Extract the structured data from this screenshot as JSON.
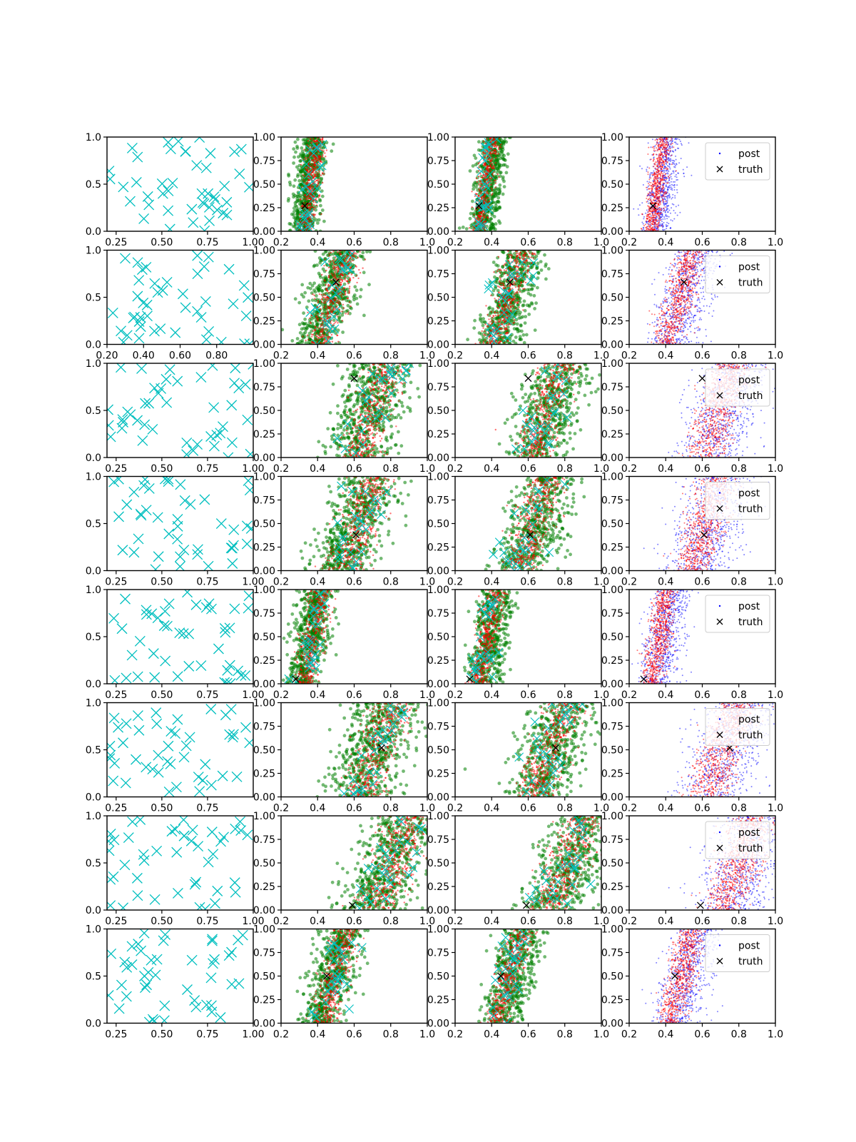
{
  "figure": {
    "rows": 8,
    "cols": 4,
    "colors": {
      "samples_cyan": "#00bfbf",
      "posterior_red": "#ff0000",
      "posterior_green": "#008000",
      "posterior_blue": "#0000ff",
      "truth_black": "#000000"
    },
    "legend": {
      "post": "post",
      "truth": "truth"
    },
    "yticks": [
      0.0,
      0.25,
      0.5,
      0.75,
      1.0
    ],
    "col2to4_xticks": [
      0.2,
      0.4,
      0.6,
      0.8,
      1.0
    ],
    "col2to4_ylim": [
      0.0,
      1.0
    ],
    "col2to4_xlim": [
      0.2,
      1.0
    ]
  },
  "chart_data": [
    {
      "type": "scatter",
      "title": "",
      "xlabel": "",
      "ylabel": "",
      "grid": false,
      "rows": [
        {
          "col1": {
            "xlim": [
              0.2,
              1.0
            ],
            "ylim": [
              0.0,
              1.0
            ],
            "xticks": [
              0.25,
              0.5,
              0.75,
              1.0
            ],
            "yticks": [
              0.0,
              0.5,
              1.0
            ]
          },
          "truth": [
            0.33,
            0.27
          ],
          "band_center_at_y0": 0.33,
          "band_slope": 0.07,
          "band_width": 0.07
        },
        {
          "col1": {
            "xlim": [
              0.2,
              1.0
            ],
            "ylim": [
              0.0,
              1.0
            ],
            "xticks": [
              0.2,
              0.4,
              0.6,
              0.8
            ],
            "yticks": [
              0.0,
              0.5,
              1.0
            ]
          },
          "truth": [
            0.5,
            0.66
          ],
          "band_center_at_y0": 0.41,
          "band_slope": 0.15,
          "band_width": 0.12
        },
        {
          "col1": {
            "xlim": [
              0.2,
              1.0
            ],
            "ylim": [
              0.0,
              1.0
            ],
            "xticks": [
              0.25,
              0.5,
              0.75,
              1.0
            ],
            "yticks": [
              0.0,
              0.5,
              1.0
            ]
          },
          "truth": [
            0.6,
            0.84
          ],
          "band_center_at_y0": 0.62,
          "band_slope": 0.16,
          "band_width": 0.16
        },
        {
          "col1": {
            "xlim": [
              0.2,
              1.0
            ],
            "ylim": [
              0.0,
              1.0
            ],
            "xticks": [
              0.25,
              0.5,
              0.75,
              1.0
            ],
            "yticks": [
              0.0,
              0.5,
              1.0
            ]
          },
          "truth": [
            0.61,
            0.38
          ],
          "band_center_at_y0": 0.55,
          "band_slope": 0.15,
          "band_width": 0.16
        },
        {
          "col1": {
            "xlim": [
              0.2,
              1.0
            ],
            "ylim": [
              0.0,
              1.0
            ],
            "xticks": [
              0.25,
              0.5,
              0.75,
              1.0
            ],
            "yticks": [
              0.0,
              0.5,
              1.0
            ]
          },
          "truth": [
            0.28,
            0.05
          ],
          "band_center_at_y0": 0.33,
          "band_slope": 0.09,
          "band_width": 0.09
        },
        {
          "col1": {
            "xlim": [
              0.2,
              1.0
            ],
            "ylim": [
              0.0,
              1.0
            ],
            "xticks": [
              0.25,
              0.5,
              0.75
            ],
            "yticks": [
              0.0,
              0.5,
              1.0
            ]
          },
          "truth": [
            0.75,
            0.52
          ],
          "band_center_at_y0": 0.63,
          "band_slope": 0.18,
          "band_width": 0.17
        },
        {
          "col1": {
            "xlim": [
              0.2,
              1.0
            ],
            "ylim": [
              0.0,
              1.0
            ],
            "xticks": [
              0.25,
              0.5,
              0.75,
              1.0
            ],
            "yticks": [
              0.0,
              0.5,
              1.0
            ]
          },
          "truth": [
            0.59,
            0.05
          ],
          "band_center_at_y0": 0.72,
          "band_slope": 0.18,
          "band_width": 0.18
        },
        {
          "col1": {
            "xlim": [
              0.2,
              1.0
            ],
            "ylim": [
              0.0,
              1.0
            ],
            "xticks": [
              0.25,
              0.5,
              0.75,
              1.0
            ],
            "yticks": [
              0.0,
              0.5,
              1.0
            ]
          },
          "truth": [
            0.45,
            0.5
          ],
          "band_center_at_y0": 0.43,
          "band_slope": 0.13,
          "band_width": 0.11
        }
      ],
      "legend_labels": [
        "post",
        "truth"
      ],
      "legend_position": "upper right of column 4"
    }
  ]
}
